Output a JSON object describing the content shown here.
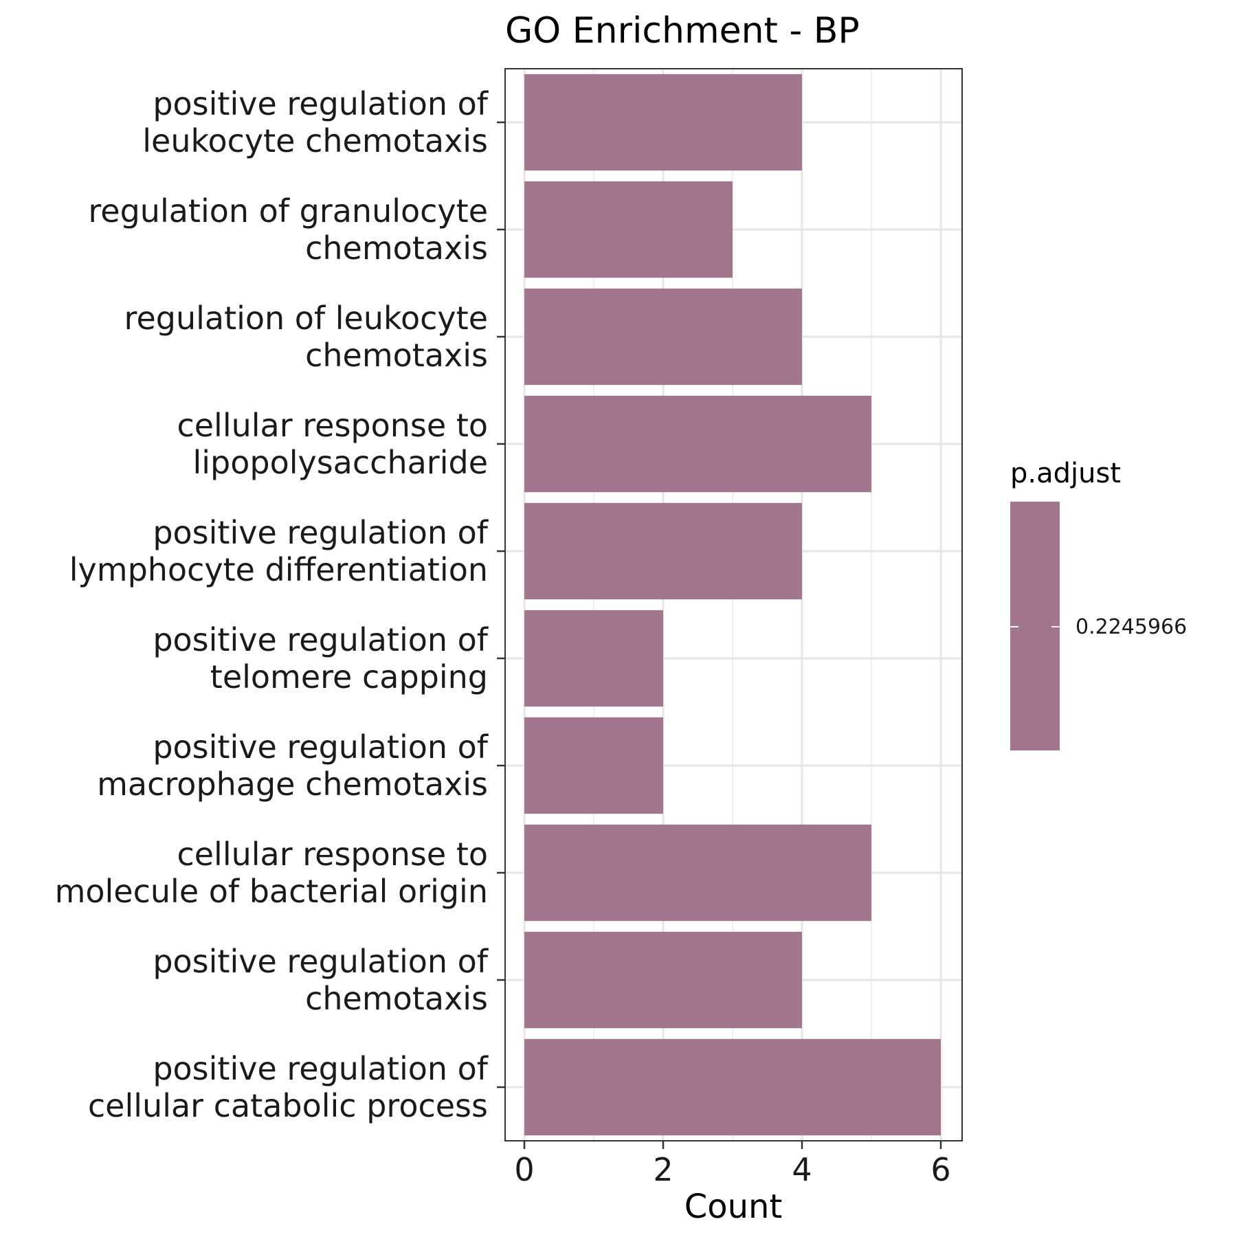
{
  "chart_data": {
    "type": "bar",
    "orientation": "horizontal",
    "title": "GO Enrichment - BP",
    "xlabel": "Count",
    "ylabel": "",
    "xlim": [
      0,
      6.3
    ],
    "xticks": [
      0,
      2,
      4,
      6
    ],
    "grid": true,
    "categories": [
      [
        "positive regulation of",
        "leukocyte chemotaxis"
      ],
      [
        "regulation of granulocyte",
        "chemotaxis"
      ],
      [
        "regulation of leukocyte",
        "chemotaxis"
      ],
      [
        "cellular response to",
        "lipopolysaccharide"
      ],
      [
        "positive regulation of",
        "lymphocyte differentiation"
      ],
      [
        "positive regulation of",
        "telomere capping"
      ],
      [
        "positive regulation of",
        "macrophage chemotaxis"
      ],
      [
        "cellular response to",
        "molecule of bacterial origin"
      ],
      [
        "positive regulation of",
        "chemotaxis"
      ],
      [
        "positive regulation of",
        "cellular catabolic process"
      ]
    ],
    "values": [
      4,
      3,
      4,
      5,
      4,
      2,
      2,
      5,
      4,
      6
    ],
    "bar_color": "#A2768D",
    "legend": {
      "title": "p.adjust",
      "placement": "right",
      "labels": [
        "0.2245966"
      ],
      "color": "#A2768D"
    }
  }
}
